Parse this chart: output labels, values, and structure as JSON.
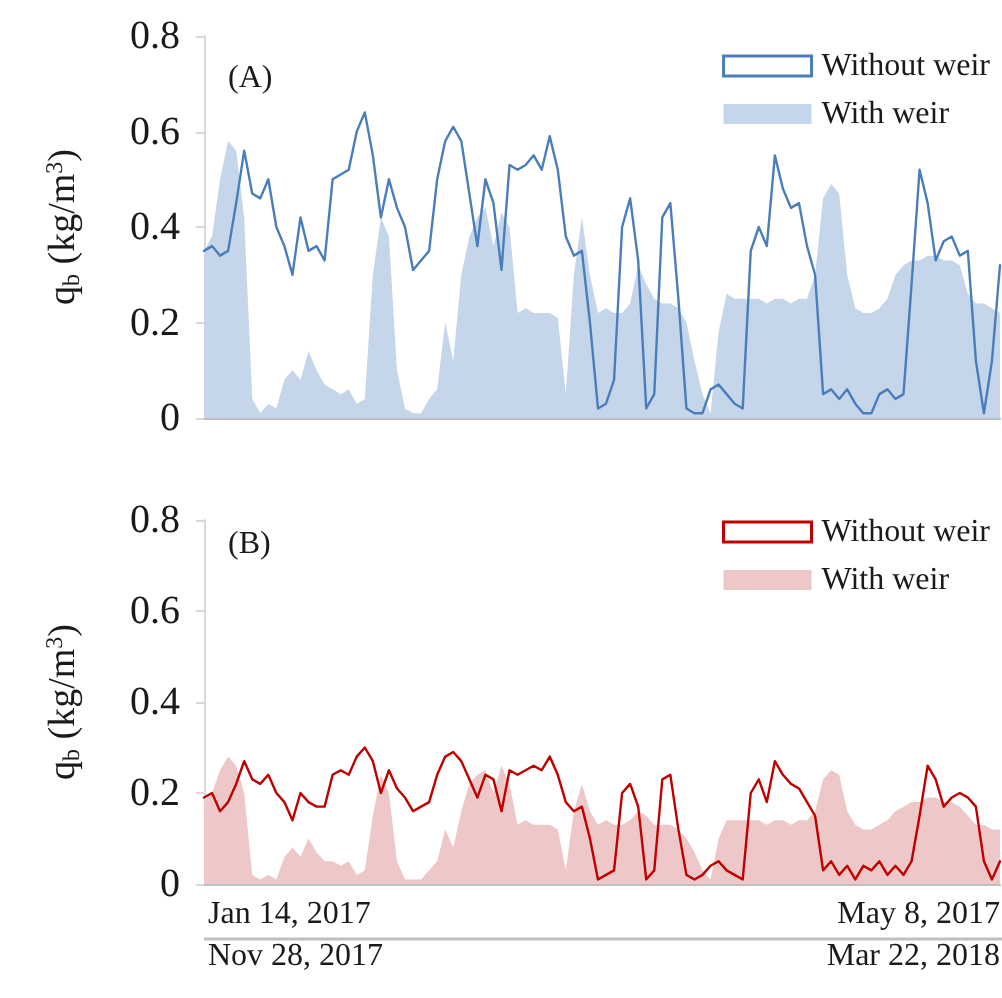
{
  "chart_data": [
    {
      "type": "line",
      "title": "(A)",
      "ylabel": "q$_{b}$ (kg/m$^{3}$)",
      "categories": [
        null,
        null,
        null,
        null,
        null,
        null,
        null,
        null,
        null,
        null,
        null,
        null,
        null,
        null,
        null,
        null,
        null,
        null,
        null,
        null,
        null,
        null,
        null,
        null,
        null,
        null,
        null,
        null,
        null,
        null,
        null,
        null,
        null,
        null,
        null,
        null,
        null,
        null,
        null,
        null,
        null,
        null,
        null,
        null,
        null,
        null,
        null,
        null,
        null,
        null,
        null,
        null,
        null,
        null,
        null,
        null,
        null,
        null,
        null,
        null,
        null,
        null,
        null,
        null,
        null,
        null,
        null,
        null,
        null,
        null,
        null,
        null,
        null,
        null,
        null,
        null,
        null,
        null,
        null,
        null,
        null,
        null,
        null,
        null,
        null,
        null,
        null,
        null,
        null,
        null,
        null,
        null,
        null,
        null,
        null,
        null,
        null,
        null,
        null,
        null
      ],
      "ylim": [
        0,
        0.8
      ],
      "yticks": [
        0,
        0.2,
        0.4,
        0.6,
        0.8
      ],
      "tick_labels": "y",
      "legend": "top right",
      "marker": "none",
      "grid": false,
      "series": [
        {
          "name": "Without weir",
          "type": "line",
          "color": "#4a7ebb",
          "values": [
            0.35,
            0.36,
            0.34,
            0.35,
            0.45,
            0.56,
            0.47,
            0.46,
            0.5,
            0.4,
            0.36,
            0.3,
            0.42,
            0.35,
            0.36,
            0.33,
            0.5,
            0.51,
            0.52,
            0.6,
            0.64,
            0.55,
            0.42,
            0.5,
            0.44,
            0.4,
            0.31,
            0.33,
            0.35,
            0.5,
            0.58,
            0.61,
            0.58,
            0.47,
            0.36,
            0.5,
            0.45,
            0.31,
            0.53,
            0.52,
            0.53,
            0.55,
            0.52,
            0.59,
            0.52,
            0.38,
            0.34,
            0.35,
            0.2,
            0.02,
            0.03,
            0.08,
            0.4,
            0.46,
            0.33,
            0.02,
            0.05,
            0.42,
            0.45,
            0.25,
            0.02,
            0.01,
            0.01,
            0.06,
            0.07,
            0.05,
            0.03,
            0.02,
            0.35,
            0.4,
            0.36,
            0.55,
            0.48,
            0.44,
            0.45,
            0.36,
            0.3,
            0.05,
            0.06,
            0.04,
            0.06,
            0.03,
            0.01,
            0.01,
            0.05,
            0.06,
            0.04,
            0.05,
            0.28,
            0.52,
            0.45,
            0.33,
            0.37,
            0.38,
            0.34,
            0.35,
            0.12,
            0.01,
            0.12,
            0.32
          ]
        },
        {
          "name": "With weir",
          "type": "area",
          "color": "#c6d6ea",
          "values": [
            0.35,
            0.38,
            0.5,
            0.58,
            0.56,
            0.42,
            0.04,
            0.01,
            0.03,
            0.02,
            0.08,
            0.1,
            0.08,
            0.14,
            0.1,
            0.07,
            0.06,
            0.05,
            0.06,
            0.03,
            0.04,
            0.3,
            0.42,
            0.38,
            0.1,
            0.02,
            0.01,
            0.01,
            0.04,
            0.06,
            0.2,
            0.12,
            0.3,
            0.38,
            0.42,
            0.44,
            0.36,
            0.43,
            0.4,
            0.22,
            0.23,
            0.22,
            0.22,
            0.22,
            0.21,
            0.05,
            0.3,
            0.42,
            0.3,
            0.22,
            0.23,
            0.22,
            0.22,
            0.24,
            0.32,
            0.28,
            0.25,
            0.24,
            0.24,
            0.23,
            0.2,
            0.12,
            0.05,
            0.01,
            0.18,
            0.26,
            0.25,
            0.25,
            0.25,
            0.25,
            0.24,
            0.25,
            0.25,
            0.24,
            0.25,
            0.25,
            0.3,
            0.46,
            0.49,
            0.47,
            0.3,
            0.23,
            0.22,
            0.22,
            0.23,
            0.25,
            0.3,
            0.32,
            0.33,
            0.33,
            0.34,
            0.34,
            0.33,
            0.33,
            0.32,
            0.26,
            0.24,
            0.24,
            0.23,
            0.22
          ]
        }
      ]
    },
    {
      "type": "line",
      "title": "(B)",
      "ylabel": "q$_{b}$ (kg/m$^{3}$)",
      "categories": [
        null,
        null,
        null,
        null,
        null,
        null,
        null,
        null,
        null,
        null,
        null,
        null,
        null,
        null,
        null,
        null,
        null,
        null,
        null,
        null,
        null,
        null,
        null,
        null,
        null,
        null,
        null,
        null,
        null,
        null,
        null,
        null,
        null,
        null,
        null,
        null,
        null,
        null,
        null,
        null,
        null,
        null,
        null,
        null,
        null,
        null,
        null,
        null,
        null,
        null,
        null,
        null,
        null,
        null,
        null,
        null,
        null,
        null,
        null,
        null,
        null,
        null,
        null,
        null,
        null,
        null,
        null,
        null,
        null,
        null,
        null,
        null,
        null,
        null,
        null,
        null,
        null,
        null,
        null,
        null,
        null,
        null,
        null,
        null,
        null,
        null,
        null,
        null,
        null,
        null,
        null,
        null,
        null,
        null,
        null,
        null,
        null,
        null,
        null,
        null
      ],
      "ylim": [
        0,
        0.8
      ],
      "yticks": [
        0,
        0.2,
        0.4,
        0.6,
        0.8
      ],
      "tick_labels": "y",
      "legend": "top right",
      "marker": "none",
      "grid": false,
      "annotations": [
        "Jan 14, 2017",
        "Nov 28, 2017",
        "May 8, 2017",
        "Mar 22, 2018"
      ],
      "series": [
        {
          "name": "Without weir",
          "type": "line",
          "color": "#c00000",
          "values": [
            0.19,
            0.2,
            0.16,
            0.18,
            0.22,
            0.27,
            0.23,
            0.22,
            0.24,
            0.2,
            0.18,
            0.14,
            0.2,
            0.18,
            0.17,
            0.17,
            0.24,
            0.25,
            0.24,
            0.28,
            0.3,
            0.27,
            0.2,
            0.25,
            0.21,
            0.19,
            0.16,
            0.17,
            0.18,
            0.24,
            0.28,
            0.29,
            0.27,
            0.23,
            0.19,
            0.24,
            0.23,
            0.16,
            0.25,
            0.24,
            0.25,
            0.26,
            0.25,
            0.28,
            0.24,
            0.18,
            0.16,
            0.17,
            0.1,
            0.01,
            0.02,
            0.03,
            0.2,
            0.22,
            0.17,
            0.01,
            0.03,
            0.23,
            0.24,
            0.12,
            0.02,
            0.01,
            0.02,
            0.04,
            0.05,
            0.03,
            0.02,
            0.01,
            0.2,
            0.23,
            0.18,
            0.27,
            0.24,
            0.22,
            0.21,
            0.18,
            0.15,
            0.03,
            0.05,
            0.02,
            0.04,
            0.01,
            0.04,
            0.03,
            0.05,
            0.02,
            0.04,
            0.02,
            0.05,
            0.15,
            0.26,
            0.23,
            0.17,
            0.19,
            0.2,
            0.19,
            0.17,
            0.05,
            0.01,
            0.05
          ]
        },
        {
          "name": "With weir",
          "type": "area",
          "color": "#eec8c8",
          "values": [
            0.18,
            0.2,
            0.25,
            0.28,
            0.26,
            0.2,
            0.02,
            0.01,
            0.02,
            0.01,
            0.06,
            0.08,
            0.06,
            0.1,
            0.07,
            0.05,
            0.05,
            0.04,
            0.05,
            0.02,
            0.03,
            0.15,
            0.24,
            0.2,
            0.05,
            0.01,
            0.01,
            0.01,
            0.03,
            0.05,
            0.12,
            0.08,
            0.16,
            0.22,
            0.24,
            0.25,
            0.2,
            0.26,
            0.22,
            0.13,
            0.14,
            0.13,
            0.13,
            0.13,
            0.12,
            0.03,
            0.16,
            0.22,
            0.16,
            0.13,
            0.14,
            0.13,
            0.13,
            0.14,
            0.16,
            0.15,
            0.13,
            0.13,
            0.13,
            0.12,
            0.1,
            0.07,
            0.03,
            0.01,
            0.1,
            0.14,
            0.14,
            0.14,
            0.14,
            0.14,
            0.13,
            0.14,
            0.14,
            0.13,
            0.14,
            0.14,
            0.16,
            0.23,
            0.25,
            0.24,
            0.16,
            0.13,
            0.12,
            0.12,
            0.13,
            0.14,
            0.16,
            0.17,
            0.18,
            0.18,
            0.19,
            0.19,
            0.18,
            0.18,
            0.17,
            0.15,
            0.13,
            0.13,
            0.12,
            0.12
          ]
        }
      ]
    }
  ]
}
